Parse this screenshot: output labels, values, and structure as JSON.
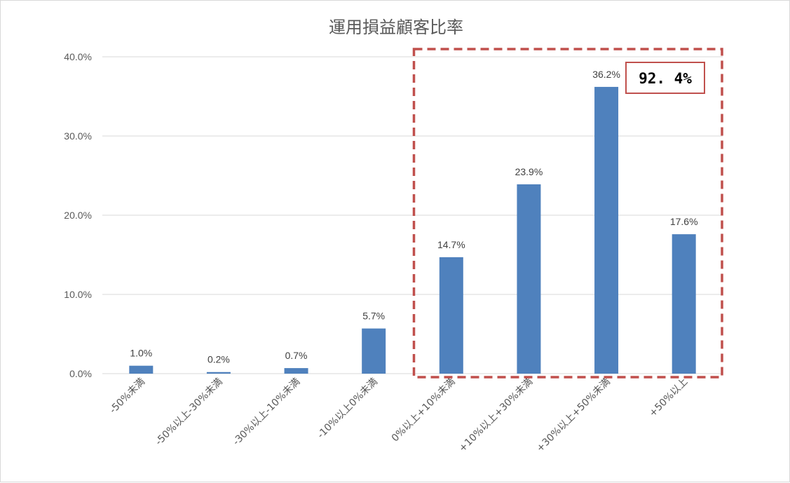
{
  "chart_data": {
    "type": "bar",
    "title": "運用損益顧客比率",
    "categories": [
      "-50%未満",
      "-50%以上-30%未満",
      "-30%以上-10%未満",
      "-10%以上0%未満",
      "0%以上+10%未満",
      "+10%以上+30%未満",
      "+30%以上+50%未満",
      "+50%以上"
    ],
    "values": [
      1.0,
      0.2,
      0.7,
      5.7,
      14.7,
      23.9,
      36.2,
      17.6
    ],
    "data_labels": [
      "1.0%",
      "0.2%",
      "0.7%",
      "5.7%",
      "14.7%",
      "23.9%",
      "36.2%",
      "17.6%"
    ],
    "y_ticks": [
      "0.0%",
      "10.0%",
      "20.0%",
      "30.0%",
      "40.0%"
    ],
    "ylim": [
      0,
      40
    ],
    "xlabel": "",
    "ylabel": "",
    "grid": true,
    "legend": "none",
    "highlight": {
      "from_category": 4,
      "to_category": 7,
      "label": "92. 4%"
    },
    "colors": {
      "bar": "#4f81bd",
      "highlight": "#c0504d",
      "grid": "#d9d9d9",
      "text": "#595959"
    }
  }
}
